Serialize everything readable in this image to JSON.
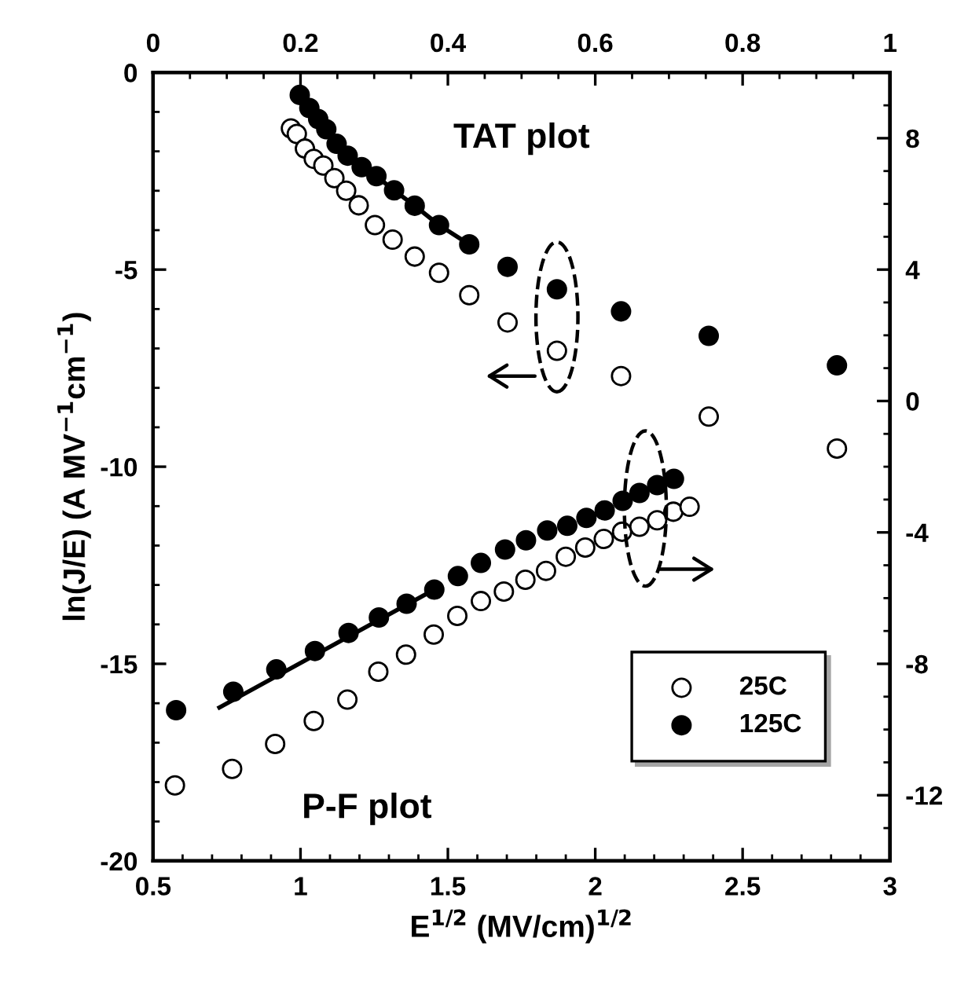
{
  "chart_data": {
    "type": "scatter",
    "xlabel": "E$^{1/2}$ (MV/cm)$^{1/2}$",
    "ylabel": "ln(J/E) (A MV$^{−1}$cm$^{−1}$)",
    "xlim": [
      0.5,
      3
    ],
    "xticks": [
      0.5,
      1,
      1.5,
      2,
      2.5,
      3
    ],
    "ylim": [
      -20,
      0
    ],
    "yticks": [
      -20,
      -15,
      -10,
      -5,
      0
    ],
    "x2lim": [
      0,
      1
    ],
    "x2ticks": [
      0,
      0.2,
      0.4,
      0.6,
      0.8,
      1
    ],
    "y2lim": [
      -14,
      10
    ],
    "y2ticks": [
      -12,
      -8,
      -4,
      0,
      4,
      8
    ],
    "marker": "circle",
    "legend": "bottom right",
    "grid": false,
    "annotations": [
      "TAT plot",
      "P-F plot"
    ],
    "series": [
      {
        "axis": "x2",
        "color": "#ffffff",
        "x": [
          0.187,
          0.195,
          0.206,
          0.218,
          0.231,
          0.246,
          0.262,
          0.279,
          0.301,
          0.325,
          0.355,
          0.388,
          0.429,
          0.481,
          0.548,
          0.635,
          0.754,
          0.928
        ],
        "values": [
          -1.42,
          -1.56,
          -1.93,
          -2.19,
          -2.36,
          -2.68,
          -3.0,
          -3.37,
          -3.87,
          -4.24,
          -4.67,
          -5.08,
          -5.65,
          -6.34,
          -7.06,
          -7.7,
          -8.73,
          -9.54
        ]
      },
      {
        "axis": "x2",
        "color": "#000000",
        "x": [
          0.199,
          0.212,
          0.224,
          0.235,
          0.249,
          0.264,
          0.283,
          0.303,
          0.327,
          0.355,
          0.388,
          0.429,
          0.481,
          0.548,
          0.635,
          0.754,
          0.928
        ],
        "values": [
          -0.57,
          -0.9,
          -1.18,
          -1.44,
          -1.81,
          -2.11,
          -2.4,
          -2.63,
          -2.99,
          -3.38,
          -3.87,
          -4.36,
          -4.93,
          -5.5,
          -6.06,
          -6.68,
          -7.43
        ]
      },
      {
        "type": "line",
        "axis": "x2",
        "color": "#000000",
        "marker": "none",
        "x": [
          0.199,
          0.212,
          0.224,
          0.235,
          0.249,
          0.264,
          0.283,
          0.303,
          0.327,
          0.355,
          0.388,
          0.429
        ],
        "values": [
          -0.57,
          -0.9,
          -1.18,
          -1.44,
          -1.81,
          -2.11,
          -2.4,
          -2.63,
          -2.99,
          -3.38,
          -3.87,
          -4.36
        ]
      },
      {
        "name": "25C",
        "axis": "y2",
        "color": "#ffffff",
        "x": [
          0.574,
          0.768,
          0.914,
          1.045,
          1.159,
          1.264,
          1.358,
          1.452,
          1.532,
          1.612,
          1.69,
          1.763,
          1.833,
          1.9,
          1.966,
          2.029,
          2.091,
          2.15,
          2.21,
          2.265,
          2.32
        ],
        "values": [
          -11.7,
          -11.2,
          -10.44,
          -9.74,
          -9.09,
          -8.24,
          -7.72,
          -7.11,
          -6.54,
          -6.09,
          -5.8,
          -5.44,
          -5.17,
          -4.74,
          -4.46,
          -4.2,
          -3.98,
          -3.83,
          -3.63,
          -3.37,
          -3.22
        ]
      },
      {
        "name": "125C",
        "axis": "y2",
        "color": "#000000",
        "x": [
          0.578,
          0.772,
          0.918,
          1.049,
          1.163,
          1.266,
          1.36,
          1.454,
          1.534,
          1.612,
          1.694,
          1.765,
          1.837,
          1.905,
          1.97,
          2.032,
          2.093,
          2.15,
          2.21,
          2.267
        ],
        "values": [
          -9.41,
          -8.85,
          -8.17,
          -7.61,
          -7.06,
          -6.59,
          -6.17,
          -5.74,
          -5.33,
          -4.93,
          -4.52,
          -4.24,
          -3.94,
          -3.8,
          -3.56,
          -3.33,
          -3.04,
          -2.8,
          -2.56,
          -2.37
        ]
      },
      {
        "type": "line",
        "axis": "y2",
        "color": "#000000",
        "marker": "none",
        "x": [
          0.725,
          1.454
        ],
        "values": [
          -9.33,
          -5.74
        ]
      }
    ]
  }
}
